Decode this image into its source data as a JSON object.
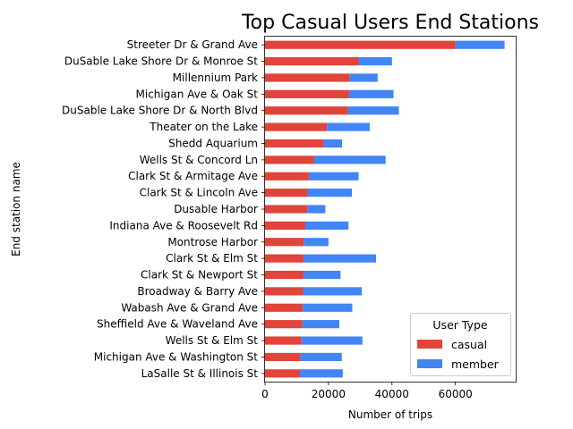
{
  "chart_data": {
    "type": "bar",
    "orientation": "horizontal",
    "stacked": true,
    "title": "Top Casual Users End Stations",
    "xlabel": "Number of trips",
    "ylabel": "End station name",
    "xlim": [
      0,
      79000
    ],
    "x_ticks": [
      0,
      20000,
      40000,
      60000
    ],
    "grid": false,
    "legend": {
      "title": "User Type",
      "position": "lower-right"
    },
    "categories": [
      "Streeter Dr & Grand Ave",
      "DuSable Lake Shore Dr & Monroe St",
      "Millennium Park",
      "Michigan Ave & Oak St",
      "DuSable Lake Shore Dr & North Blvd",
      "Theater on the Lake",
      "Shedd Aquarium",
      "Wells St & Concord Ln",
      "Clark St & Armitage Ave",
      "Clark St & Lincoln Ave",
      "Dusable Harbor",
      "Indiana Ave & Roosevelt Rd",
      "Montrose Harbor",
      "Clark St & Elm St",
      "Clark St & Newport St",
      "Broadway & Barry Ave",
      "Wabash Ave & Grand Ave",
      "Sheffield Ave & Waveland Ave",
      "Wells St & Elm St",
      "Michigan Ave & Washington St",
      "LaSalle St & Illinois St"
    ],
    "series": [
      {
        "name": "casual",
        "color": "#e0443a",
        "values": [
          60000,
          29500,
          26700,
          26500,
          26200,
          19500,
          18500,
          15500,
          13800,
          13400,
          13300,
          12700,
          12200,
          12100,
          12100,
          12000,
          11900,
          11800,
          11500,
          11200,
          11000
        ]
      },
      {
        "name": "member",
        "color": "#4285f4",
        "values": [
          15500,
          10500,
          8800,
          14000,
          16000,
          13500,
          5800,
          22500,
          15700,
          14000,
          5700,
          13600,
          7800,
          22900,
          11700,
          18500,
          15600,
          11600,
          19200,
          13000,
          13500
        ]
      }
    ]
  }
}
